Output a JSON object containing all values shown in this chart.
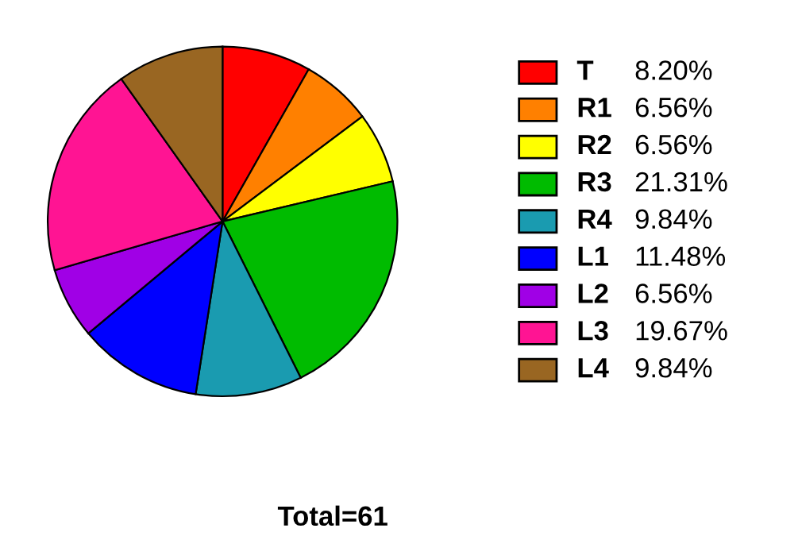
{
  "chart_data": {
    "type": "pie",
    "categories": [
      "T",
      "R1",
      "R2",
      "R3",
      "R4",
      "L1",
      "L2",
      "L3",
      "L4"
    ],
    "values": [
      8.2,
      6.56,
      6.56,
      21.31,
      9.84,
      11.48,
      6.56,
      19.67,
      9.84
    ],
    "value_labels": [
      "8.20%",
      "6.56%",
      "6.56%",
      "21.31%",
      "9.84%",
      "11.48%",
      "6.56%",
      "19.67%",
      "9.84%"
    ],
    "colors": [
      "#ff0000",
      "#ff8000",
      "#ffff00",
      "#00bb00",
      "#1a9bb0",
      "#0000ff",
      "#a000e6",
      "#ff1493",
      "#996622"
    ],
    "legend": "right",
    "annotations": [
      "Total=61"
    ]
  }
}
